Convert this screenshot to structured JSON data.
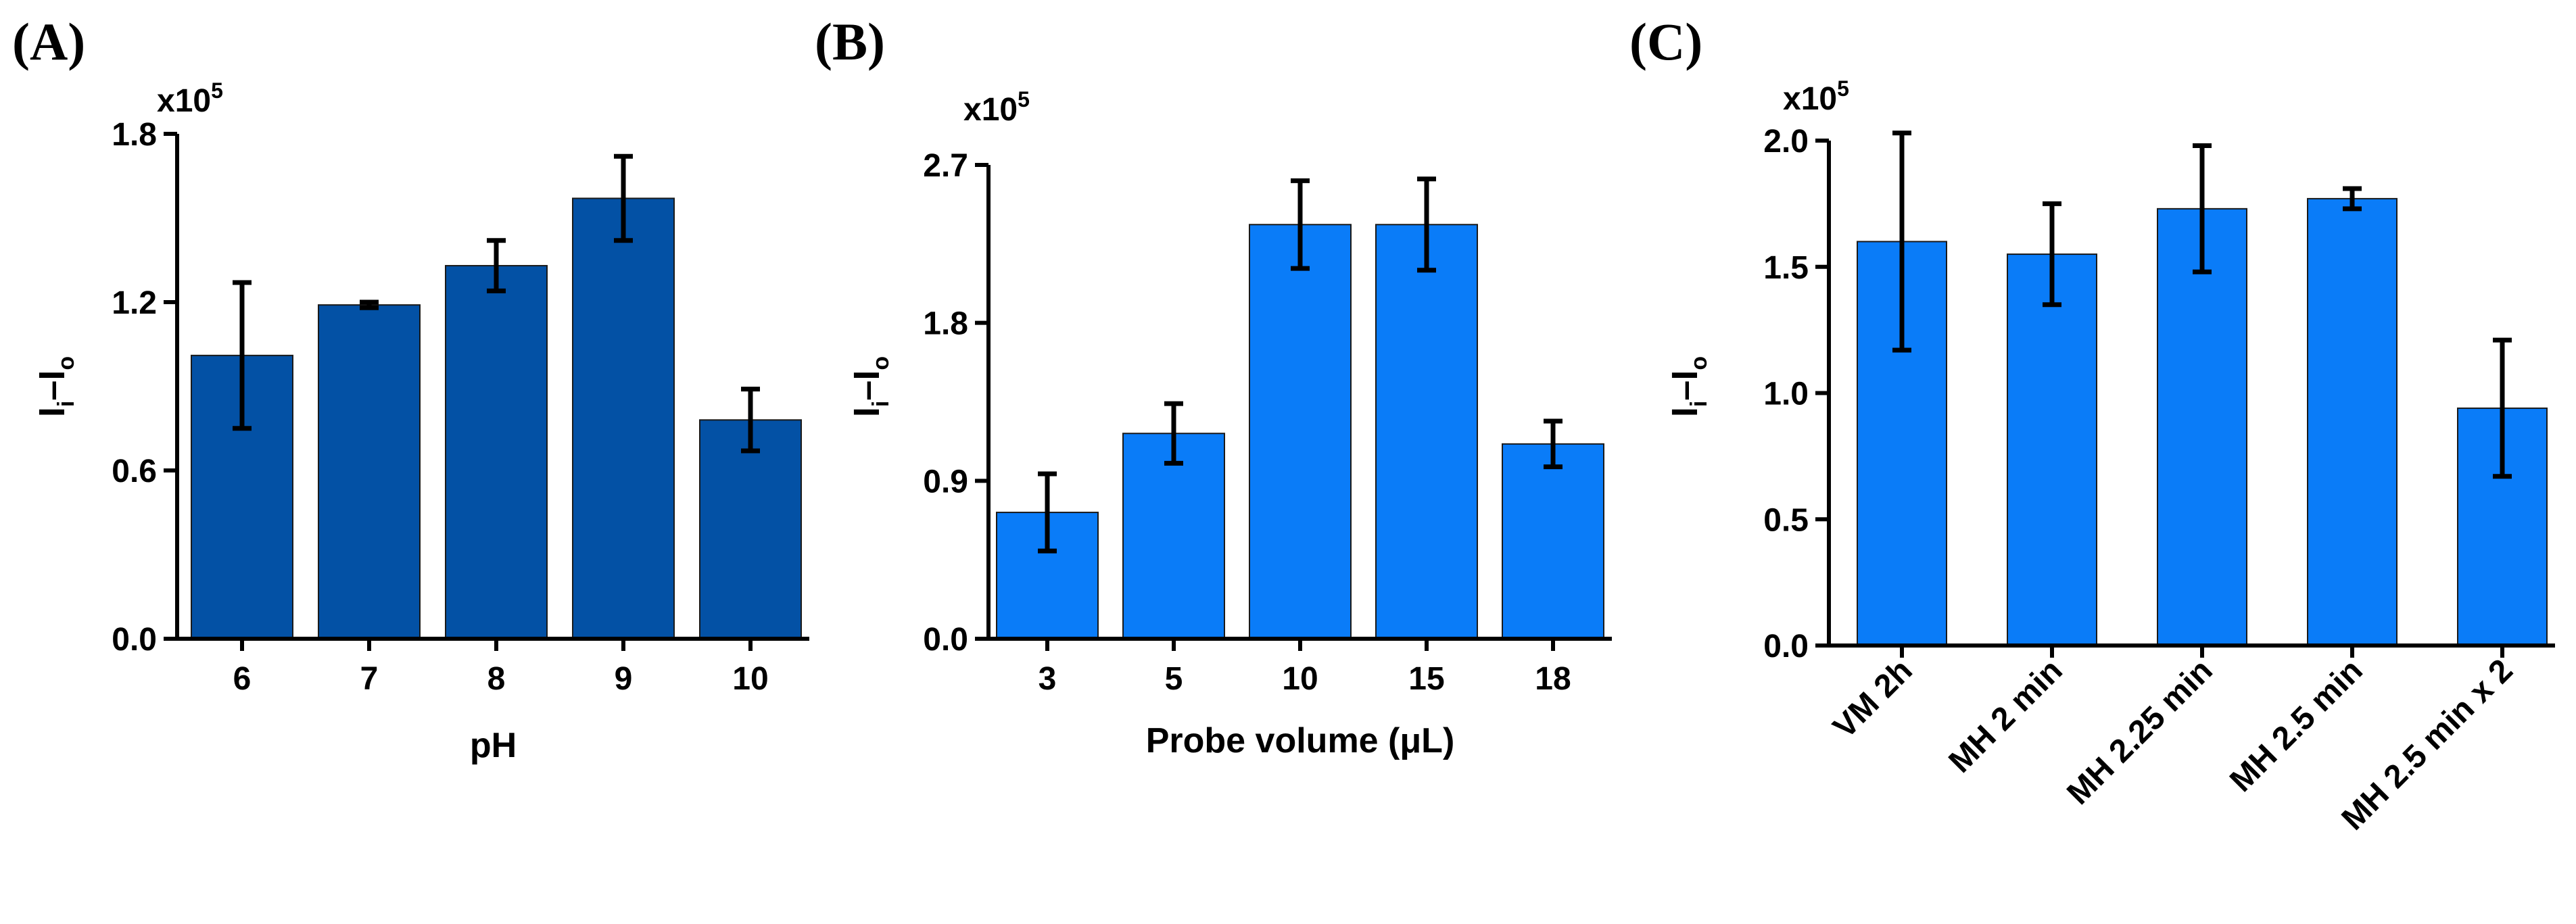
{
  "chart_data": [
    {
      "type": "bar",
      "panel": "(A)",
      "multiplier_base": "x10",
      "multiplier_exp": "5",
      "ylabel": {
        "main1": "I",
        "sub1": "i",
        "dash": "–",
        "main2": "I",
        "sub2": "o"
      },
      "xlabel": "pH",
      "categories": [
        "6",
        "7",
        "8",
        "9",
        "10"
      ],
      "values": [
        1.01,
        1.19,
        1.33,
        1.57,
        0.78
      ],
      "errors": [
        0.26,
        0.01,
        0.09,
        0.15,
        0.11
      ],
      "ylim": [
        0,
        1.8
      ],
      "yticks": [
        "0.0",
        "0.6",
        "1.2",
        "1.8"
      ],
      "yticks_values": [
        0,
        0.6,
        1.2,
        1.8
      ],
      "bar_color": "#0351A5",
      "rotate_labels": false
    },
    {
      "type": "bar",
      "panel": "(B)",
      "multiplier_base": "x10",
      "multiplier_exp": "5",
      "ylabel": {
        "main1": "I",
        "sub1": "i",
        "dash": "–",
        "main2": "I",
        "sub2": "o"
      },
      "xlabel": "Probe volume (μL)",
      "categories": [
        "3",
        "5",
        "10",
        "15",
        "18"
      ],
      "values": [
        0.72,
        1.17,
        2.36,
        2.36,
        1.11
      ],
      "errors": [
        0.22,
        0.17,
        0.25,
        0.26,
        0.13
      ],
      "ylim": [
        0,
        2.7
      ],
      "yticks": [
        "0.0",
        "0.9",
        "1.8",
        "2.7"
      ],
      "yticks_values": [
        0,
        0.9,
        1.8,
        2.7
      ],
      "bar_color": "#0A7CF8",
      "rotate_labels": false
    },
    {
      "type": "bar",
      "panel": "(C)",
      "multiplier_base": "x10",
      "multiplier_exp": "5",
      "ylabel": {
        "main1": "I",
        "sub1": "i",
        "dash": "–",
        "main2": "I",
        "sub2": "o"
      },
      "xlabel": "",
      "categories": [
        "VM 2h",
        "MH 2 min",
        "MH 2.25 min",
        "MH 2.5 min",
        "MH 2.5 min x 2"
      ],
      "values": [
        1.6,
        1.55,
        1.73,
        1.77,
        0.94
      ],
      "errors": [
        0.43,
        0.2,
        0.25,
        0.04,
        0.27
      ],
      "ylim": [
        0,
        2.0
      ],
      "yticks": [
        "0.0",
        "0.5",
        "1.0",
        "1.5",
        "2.0"
      ],
      "yticks_values": [
        0,
        0.5,
        1.0,
        1.5,
        2.0
      ],
      "bar_color": "#0A7CF8",
      "rotate_labels": true
    }
  ]
}
